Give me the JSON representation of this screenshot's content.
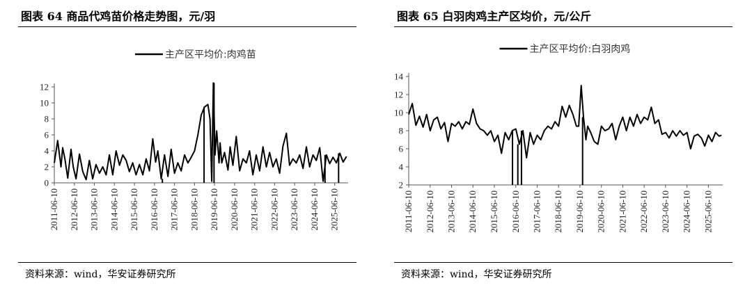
{
  "panels": [
    {
      "figure_title": "图表 64 商品代鸡苗价格走势图，元/羽",
      "source": "资料来源：wind，华安证券研究所",
      "chart_data": {
        "type": "line",
        "legend_label": "主产区平均价:肉鸡苗",
        "legend_position": "top-center",
        "ylim": [
          0,
          12
        ],
        "yticks": [
          0,
          2,
          4,
          6,
          8,
          10,
          12
        ],
        "xlim": [
          "2011-06-10",
          "2026-02-10"
        ],
        "xticks": [
          "2011-06-10",
          "2012-06-10",
          "2013-06-10",
          "2014-06-10",
          "2015-06-10",
          "2016-06-10",
          "2017-06-10",
          "2018-06-10",
          "2019-06-10",
          "2020-06-10",
          "2021-06-10",
          "2022-06-10",
          "2023-06-10",
          "2024-06-10",
          "2025-06-10"
        ],
        "series": [
          {
            "name": "主产区平均价:肉鸡苗",
            "x": [
              "2011-06-10",
              "2011-08-10",
              "2011-10-10",
              "2011-11-10",
              "2011-12-20",
              "2012-02-10",
              "2012-04-10",
              "2012-05-20",
              "2012-07-10",
              "2012-09-10",
              "2012-11-10",
              "2013-01-10",
              "2013-03-10",
              "2013-05-10",
              "2013-07-10",
              "2013-09-10",
              "2013-11-10",
              "2014-01-10",
              "2014-03-10",
              "2014-05-10",
              "2014-07-10",
              "2014-09-10",
              "2014-11-10",
              "2015-01-10",
              "2015-03-10",
              "2015-05-10",
              "2015-07-10",
              "2015-09-10",
              "2015-11-10",
              "2016-01-10",
              "2016-03-10",
              "2016-05-10",
              "2016-07-01",
              "2016-08-10",
              "2016-10-10",
              "2016-12-10",
              "2017-02-10",
              "2017-04-10",
              "2017-06-10",
              "2017-08-10",
              "2017-10-10",
              "2017-12-10",
              "2018-02-10",
              "2018-04-10",
              "2018-06-10",
              "2018-08-10",
              "2018-10-10",
              "2018-12-10",
              "2019-02-10",
              "2019-03-20",
              "2019-04-20",
              "2019-05-20",
              "2019-06-20",
              "2019-07-20",
              "2019-09-01",
              "2019-09-20",
              "2019-10-20",
              "2019-12-10",
              "2020-02-10",
              "2020-03-20",
              "2020-05-10",
              "2020-07-10",
              "2020-09-10",
              "2020-11-10",
              "2021-01-10",
              "2021-03-10",
              "2021-05-10",
              "2021-07-10",
              "2021-09-10",
              "2021-11-10",
              "2022-01-10",
              "2022-03-10",
              "2022-05-10",
              "2022-07-10",
              "2022-09-10",
              "2022-11-10",
              "2023-01-10",
              "2023-03-10",
              "2023-05-10",
              "2023-07-10",
              "2023-09-10",
              "2023-11-10",
              "2024-01-10",
              "2024-03-10",
              "2024-05-10",
              "2024-07-10",
              "2024-09-10",
              "2024-11-10",
              "2025-01-10",
              "2025-03-10",
              "2025-05-10",
              "2025-07-10",
              "2025-09-10",
              "2025-11-10",
              "2026-01-10"
            ],
            "values": [
              2.5,
              5.3,
              2.0,
              4.4,
              3.0,
              0.6,
              4.2,
              2.0,
              0.5,
              3.6,
              1.4,
              0.4,
              2.8,
              0.5,
              2.3,
              1.2,
              2.0,
              1.0,
              3.5,
              1.0,
              4.0,
              2.2,
              3.5,
              2.8,
              1.4,
              2.5,
              1.0,
              2.3,
              1.0,
              3.0,
              1.5,
              5.5,
              2.6,
              4.0,
              0.5,
              3.5,
              0.8,
              4.2,
              1.2,
              2.5,
              1.5,
              3.5,
              2.5,
              3.2,
              4.0,
              6.0,
              8.5,
              9.5,
              9.8,
              8.0,
              0.2,
              12.5,
              3.5,
              6.5,
              2.5,
              5.0,
              2.5,
              3.8,
              1.6,
              4.5,
              2.2,
              5.8,
              1.5,
              3.0,
              2.5,
              4.0,
              1.0,
              3.5,
              1.5,
              4.5,
              2.0,
              3.8,
              2.0,
              3.0,
              1.2,
              4.6,
              6.2,
              2.2,
              3.0,
              2.5,
              3.5,
              1.8,
              4.5,
              2.0,
              3.5,
              2.8,
              4.4,
              0.2,
              3.5,
              2.4,
              3.2,
              2.5,
              3.7,
              2.6,
              3.3
            ]
          }
        ],
        "drops": [
          {
            "x": "2016-11-01",
            "min": 0
          },
          {
            "x": "2018-12-01",
            "min": 0
          },
          {
            "x": "2019-06-01",
            "min": 0
          },
          {
            "x": "2024-12-15",
            "min": 0
          },
          {
            "x": "2025-08-20",
            "min": 0
          }
        ],
        "grid": false
      }
    },
    {
      "figure_title": "图表 65 白羽肉鸡主产区均价，元/公斤",
      "source": "资料来源：wind，华安证券研究所",
      "chart_data": {
        "type": "line",
        "legend_label": "主产区平均价:白羽肉鸡",
        "legend_position": "top-center",
        "ylim": [
          2,
          14
        ],
        "yticks": [
          2,
          4,
          6,
          8,
          10,
          12,
          14
        ],
        "xlim": [
          "2011-06-10",
          "2026-02-10"
        ],
        "xticks": [
          "2011-06-10",
          "2012-06-10",
          "2013-06-10",
          "2014-06-10",
          "2015-06-10",
          "2016-06-10",
          "2017-06-10",
          "2018-06-10",
          "2019-06-10",
          "2020-06-10",
          "2021-06-10",
          "2022-06-10",
          "2023-06-10",
          "2024-06-10",
          "2025-06-10"
        ],
        "series": [
          {
            "name": "主产区平均价:白羽肉鸡",
            "x": [
              "2011-06-10",
              "2011-08-10",
              "2011-10-10",
              "2011-12-10",
              "2012-02-10",
              "2012-04-10",
              "2012-06-10",
              "2012-08-10",
              "2012-10-10",
              "2012-12-10",
              "2013-02-10",
              "2013-04-10",
              "2013-06-10",
              "2013-08-10",
              "2013-10-10",
              "2013-12-10",
              "2014-02-10",
              "2014-04-10",
              "2014-06-10",
              "2014-08-10",
              "2014-10-10",
              "2014-12-10",
              "2015-02-10",
              "2015-04-10",
              "2015-06-10",
              "2015-08-10",
              "2015-10-10",
              "2015-12-10",
              "2016-02-10",
              "2016-04-10",
              "2016-06-10",
              "2016-08-10",
              "2016-10-10",
              "2016-12-10",
              "2017-02-10",
              "2017-04-10",
              "2017-06-10",
              "2017-08-10",
              "2017-10-10",
              "2017-12-10",
              "2018-02-10",
              "2018-04-10",
              "2018-06-10",
              "2018-08-10",
              "2018-10-10",
              "2018-12-10",
              "2019-02-10",
              "2019-04-10",
              "2019-05-20",
              "2019-07-01",
              "2019-08-10",
              "2019-09-20",
              "2019-10-20",
              "2019-12-10",
              "2020-02-10",
              "2020-04-10",
              "2020-06-10",
              "2020-08-10",
              "2020-10-10",
              "2020-12-10",
              "2021-02-10",
              "2021-04-10",
              "2021-06-10",
              "2021-08-10",
              "2021-10-10",
              "2021-12-10",
              "2022-02-10",
              "2022-04-10",
              "2022-06-10",
              "2022-08-10",
              "2022-10-10",
              "2022-12-10",
              "2023-02-10",
              "2023-04-10",
              "2023-06-10",
              "2023-08-10",
              "2023-10-10",
              "2023-12-10",
              "2024-02-10",
              "2024-04-10",
              "2024-06-10",
              "2024-08-10",
              "2024-10-10",
              "2024-12-10",
              "2025-02-10",
              "2025-04-10",
              "2025-06-10",
              "2025-08-10",
              "2025-10-10",
              "2025-12-10",
              "2026-01-20"
            ],
            "values": [
              9.8,
              11.0,
              8.6,
              9.6,
              8.4,
              9.8,
              8.0,
              9.2,
              9.5,
              8.2,
              8.9,
              6.8,
              8.8,
              8.5,
              9.0,
              8.2,
              9.0,
              8.7,
              10.4,
              8.8,
              8.2,
              8.0,
              7.5,
              8.0,
              6.8,
              7.5,
              5.5,
              7.8,
              7.0,
              8.0,
              8.2,
              6.5,
              8.0,
              5.0,
              7.8,
              6.5,
              7.5,
              7.0,
              8.0,
              8.5,
              8.2,
              9.0,
              8.5,
              10.7,
              9.5,
              10.8,
              9.8,
              8.5,
              8.5,
              13.0,
              9.5,
              7.0,
              8.5,
              7.8,
              6.8,
              6.5,
              8.5,
              8.0,
              8.2,
              8.8,
              7.0,
              8.5,
              9.5,
              8.0,
              9.5,
              8.5,
              9.8,
              8.8,
              9.5,
              9.2,
              10.6,
              8.8,
              9.2,
              7.6,
              7.8,
              7.2,
              8.0,
              7.4,
              8.0,
              7.5,
              7.8,
              6.0,
              7.4,
              7.6,
              7.2,
              6.3,
              7.5,
              6.8,
              7.8,
              7.4,
              7.5
            ],
            "drops": [
              {
                "x": "2016-04-15",
                "min": 2
              },
              {
                "x": "2016-07-15",
                "min": 2
              },
              {
                "x": "2016-09-15",
                "min": 2
              },
              {
                "x": "2019-07-25",
                "min": 2
              }
            ]
          }
        ],
        "grid": false
      }
    }
  ]
}
